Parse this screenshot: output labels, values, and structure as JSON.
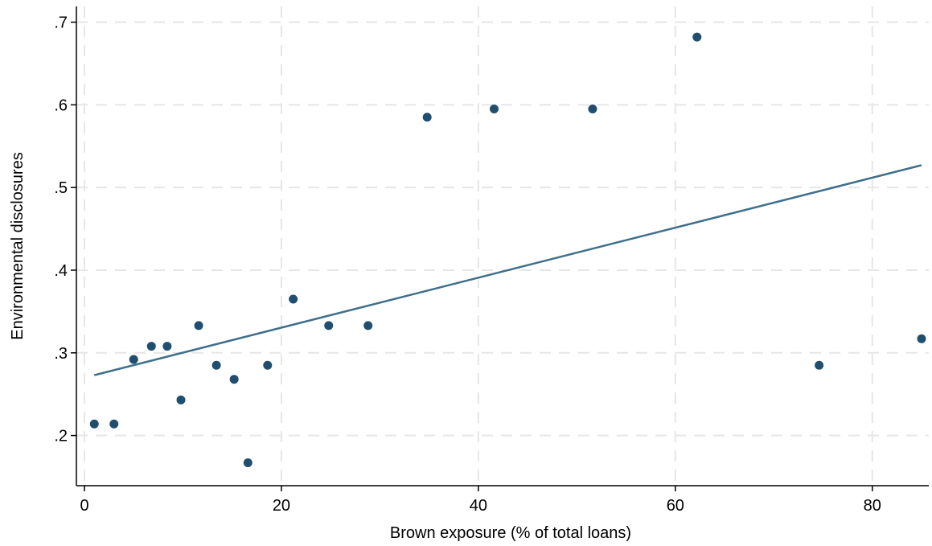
{
  "chart_data": {
    "type": "scatter",
    "title": "",
    "xlabel": "Brown exposure (% of total loans)",
    "ylabel": "Environmental disclosures",
    "xlim": [
      0,
      85
    ],
    "ylim": [
      0.15,
      0.72
    ],
    "xticks": [
      0,
      20,
      40,
      60,
      80
    ],
    "xtick_labels": [
      "0",
      "20",
      "40",
      "60",
      "80"
    ],
    "yticks": [
      0.2,
      0.3,
      0.4,
      0.5,
      0.6,
      0.7
    ],
    "ytick_labels": [
      ".2",
      ".3",
      ".4",
      ".5",
      ".6",
      ".7"
    ],
    "grid": true,
    "colors": {
      "points": "#1f4e6e",
      "fit_line": "#3f6f8a",
      "grid": "#e6e6e6"
    },
    "series": [
      {
        "type": "scatter",
        "x": [
          1.0,
          3.0,
          5.0,
          6.8,
          8.4,
          9.8,
          11.6,
          13.4,
          15.2,
          16.6,
          18.6,
          21.2,
          24.8,
          28.8,
          34.8,
          41.6,
          51.6,
          62.2,
          74.6,
          85.0
        ],
        "y": [
          0.214,
          0.214,
          0.292,
          0.308,
          0.308,
          0.243,
          0.333,
          0.285,
          0.268,
          0.167,
          0.285,
          0.365,
          0.333,
          0.333,
          0.585,
          0.595,
          0.595,
          0.682,
          0.285,
          0.317
        ]
      },
      {
        "type": "line",
        "x": [
          1.0,
          85.0
        ],
        "y": [
          0.273,
          0.527
        ]
      }
    ]
  }
}
